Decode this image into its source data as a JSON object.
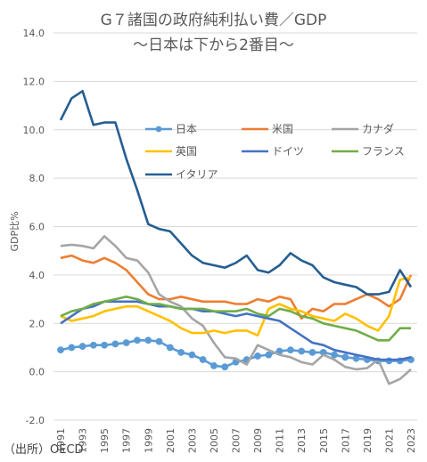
{
  "title_line1": "G７諸国の政府純利払い費／GDP",
  "title_line2": "～日本は下から2番目～",
  "source": "（出所）OECD",
  "chart_data": {
    "type": "line",
    "ylabel": "GDP比%",
    "ylim": [
      -2,
      14
    ],
    "yticks": [
      "14.0",
      "12.0",
      "10.0",
      "8.0",
      "6.0",
      "4.0",
      "2.0",
      "0.0",
      "-2.0"
    ],
    "ytick_values": [
      14,
      12,
      10,
      8,
      6,
      4,
      2,
      0,
      -2
    ],
    "xticks": [
      "1991",
      "1993",
      "1995",
      "1997",
      "1999",
      "2001",
      "2003",
      "2005",
      "2007",
      "2009",
      "2011",
      "2013",
      "2015",
      "2017",
      "2019",
      "2021",
      "2023"
    ],
    "grid": true,
    "legend_position": "upper-right",
    "x": [
      1991,
      1992,
      1993,
      1994,
      1995,
      1996,
      1997,
      1998,
      1999,
      2000,
      2001,
      2002,
      2003,
      2004,
      2005,
      2006,
      2007,
      2008,
      2009,
      2010,
      2011,
      2012,
      2013,
      2014,
      2015,
      2016,
      2017,
      2018,
      2019,
      2020,
      2021,
      2022,
      2023
    ],
    "series": [
      {
        "name": "日本",
        "color": "#5B9BD5",
        "markers": true,
        "values": [
          0.9,
          1.0,
          1.05,
          1.1,
          1.1,
          1.15,
          1.2,
          1.3,
          1.3,
          1.25,
          1.0,
          0.8,
          0.7,
          0.5,
          0.25,
          0.2,
          0.4,
          0.5,
          0.65,
          0.7,
          0.85,
          0.9,
          0.85,
          0.8,
          0.8,
          0.7,
          0.6,
          0.55,
          0.5,
          0.45,
          0.45,
          0.45,
          0.5
        ]
      },
      {
        "name": "米国",
        "color": "#ED7D31",
        "markers": false,
        "values": [
          4.7,
          4.8,
          4.6,
          4.5,
          4.7,
          4.5,
          4.2,
          3.7,
          3.2,
          3.0,
          3.0,
          3.1,
          3.0,
          2.9,
          2.9,
          2.9,
          2.8,
          2.8,
          3.0,
          2.9,
          3.1,
          3.0,
          2.2,
          2.6,
          2.5,
          2.8,
          2.8,
          3.0,
          3.2,
          3.0,
          2.7,
          3.0,
          4.0
        ]
      },
      {
        "name": "カナダ",
        "color": "#A5A5A5",
        "markers": false,
        "values": [
          5.2,
          5.25,
          5.2,
          5.1,
          5.6,
          5.2,
          4.7,
          4.6,
          4.1,
          3.2,
          2.9,
          2.7,
          2.2,
          1.9,
          1.2,
          0.6,
          0.55,
          0.3,
          1.1,
          0.9,
          0.7,
          0.6,
          0.4,
          0.3,
          0.7,
          0.5,
          0.2,
          0.1,
          0.15,
          0.5,
          -0.5,
          -0.3,
          0.1
        ]
      },
      {
        "name": "英国",
        "color": "#FFC000",
        "markers": false,
        "values": [
          2.3,
          2.1,
          2.2,
          2.3,
          2.5,
          2.6,
          2.7,
          2.7,
          2.5,
          2.3,
          2.1,
          1.8,
          1.6,
          1.6,
          1.7,
          1.6,
          1.7,
          1.7,
          1.5,
          2.6,
          2.8,
          2.6,
          2.5,
          2.3,
          2.2,
          2.1,
          2.4,
          2.2,
          1.9,
          1.7,
          2.3,
          3.8,
          3.9
        ]
      },
      {
        "name": "ドイツ",
        "color": "#4472C4",
        "markers": false,
        "values": [
          2.0,
          2.3,
          2.6,
          2.7,
          2.9,
          2.9,
          2.9,
          2.9,
          2.8,
          2.7,
          2.7,
          2.6,
          2.6,
          2.5,
          2.5,
          2.4,
          2.3,
          2.4,
          2.3,
          2.2,
          2.1,
          1.8,
          1.5,
          1.2,
          1.1,
          0.9,
          0.8,
          0.7,
          0.6,
          0.5,
          0.5,
          0.5,
          0.6
        ]
      },
      {
        "name": "フランス",
        "color": "#70AD47",
        "markers": false,
        "values": [
          2.3,
          2.5,
          2.6,
          2.8,
          2.9,
          3.0,
          3.1,
          3.0,
          2.8,
          2.8,
          2.7,
          2.6,
          2.6,
          2.6,
          2.5,
          2.5,
          2.5,
          2.6,
          2.4,
          2.3,
          2.6,
          2.5,
          2.3,
          2.2,
          2.0,
          1.9,
          1.8,
          1.7,
          1.5,
          1.3,
          1.3,
          1.8,
          1.8
        ]
      },
      {
        "name": "イタリア",
        "color": "#255E91",
        "markers": false,
        "values": [
          10.4,
          11.3,
          11.6,
          10.2,
          10.3,
          10.3,
          8.8,
          7.5,
          6.1,
          5.9,
          5.8,
          5.3,
          4.8,
          4.5,
          4.4,
          4.3,
          4.5,
          4.8,
          4.2,
          4.1,
          4.4,
          4.9,
          4.6,
          4.4,
          3.9,
          3.7,
          3.6,
          3.5,
          3.2,
          3.2,
          3.3,
          4.2,
          3.5
        ]
      }
    ]
  }
}
